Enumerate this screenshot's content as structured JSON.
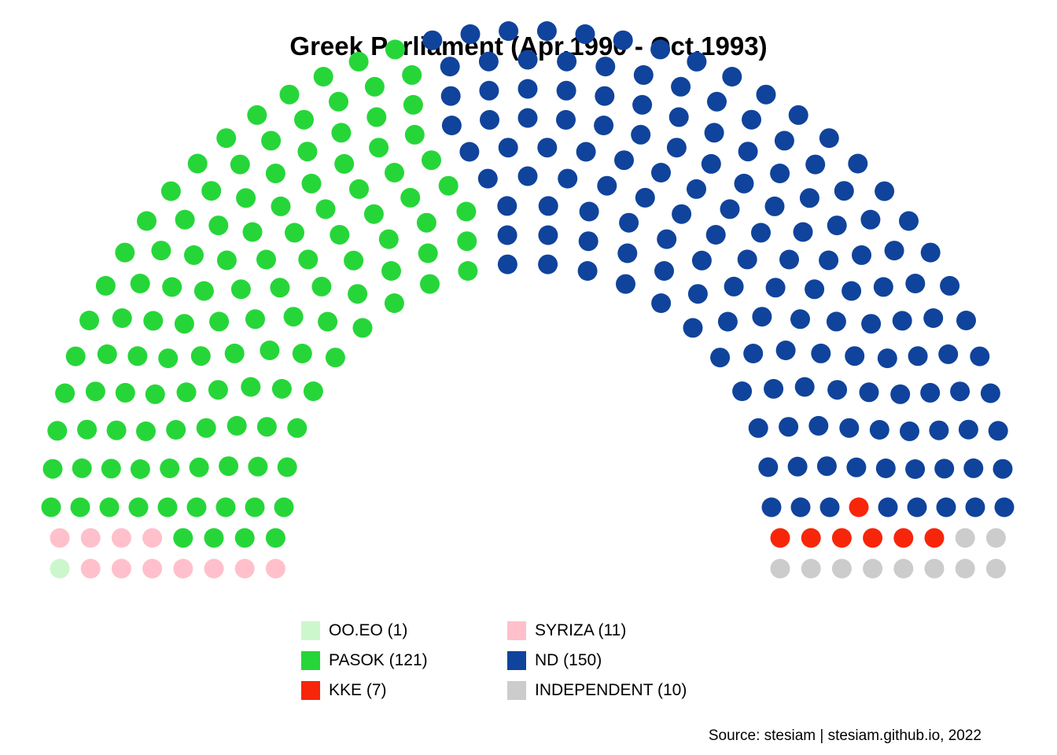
{
  "chart_data": {
    "type": "parliament",
    "title": "Greek Parliament (Apr,1990 - Oct,1993)",
    "total_seats": 300,
    "parties": [
      {
        "name": "OO.EO",
        "seats": 1,
        "color": "#ccf7cc",
        "label": "OO.EO (1)"
      },
      {
        "name": "SYRIZA",
        "seats": 11,
        "color": "#ffc0cb",
        "label": "SYRIZA (11)"
      },
      {
        "name": "PASOK",
        "seats": 121,
        "color": "#26d639",
        "label": "PASOK (121)"
      },
      {
        "name": "ND",
        "seats": 150,
        "color": "#10439c",
        "label": "ND (150)"
      },
      {
        "name": "KKE",
        "seats": 7,
        "color": "#f7260a",
        "label": "KKE (7)"
      },
      {
        "name": "INDEPENDENT",
        "seats": 10,
        "color": "#cccccc",
        "label": "INDEPENDENT (10)"
      }
    ],
    "seat_order": [
      "OO.EO",
      "SYRIZA",
      "PASOK",
      "ND",
      "KKE",
      "INDEPENDENT"
    ],
    "legend_order": [
      "OO.EO",
      "SYRIZA",
      "PASOK",
      "ND",
      "KKE",
      "INDEPENDENT"
    ],
    "legend_placement": "bottom",
    "legend_columns": 2,
    "caption": "Source: stesiam | stesiam.github.io, 2022"
  }
}
